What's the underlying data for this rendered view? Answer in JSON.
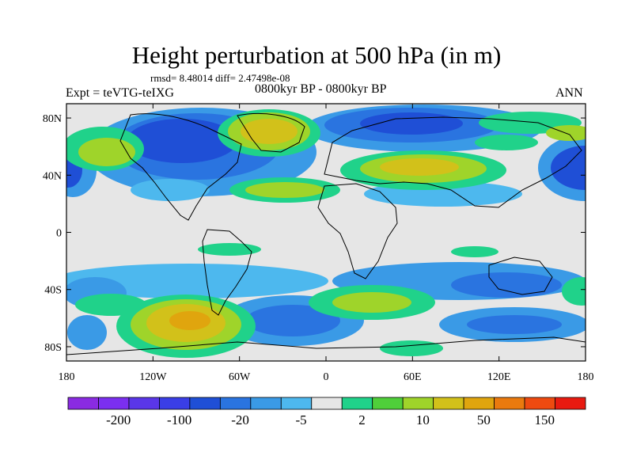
{
  "header": {
    "title": "Height perturbation at 500 hPa (in m)",
    "stats": "rmsd= 8.48014 diff= 2.47498e-08",
    "experiment": "Expt = teVTG-teIXG",
    "period": "0800kyr BP - 0800kyr BP",
    "season": "ANN"
  },
  "map": {
    "projection": "cylindrical equidistant",
    "lon_range": [
      -180,
      180
    ],
    "lat_range": [
      -90,
      90
    ],
    "lat_labels": [
      "80N",
      "40N",
      "0",
      "40S",
      "80S"
    ],
    "lon_labels": [
      "180",
      "120W",
      "60W",
      "0",
      "60E",
      "120E",
      "180"
    ],
    "background_color": "#e6e6e6",
    "coastline_color": "#000000"
  },
  "colorbar": {
    "colors": [
      "#8a2be2",
      "#7b2ff0",
      "#5a36e8",
      "#3a3ee6",
      "#1f4fd6",
      "#2a74e0",
      "#3a9ae6",
      "#4db8ee",
      "#e6e6e6",
      "#20d28a",
      "#4fcf3a",
      "#9fd42a",
      "#d2c11a",
      "#e0a50e",
      "#ea7a0e",
      "#ee4a10",
      "#e81a10"
    ],
    "labels": [
      "-200",
      "-100",
      "-20",
      "-5",
      "2",
      "10",
      "50",
      "150"
    ]
  }
}
